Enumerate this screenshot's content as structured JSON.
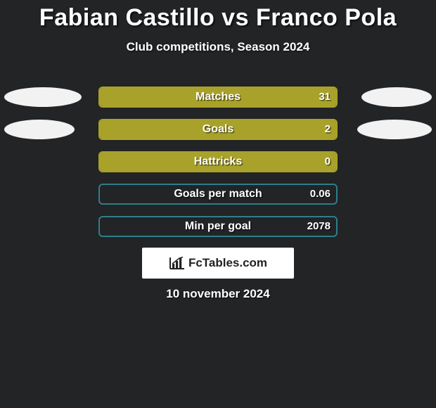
{
  "title": "Fabian Castillo vs Franco Pola",
  "subtitle": "Club competitions, Season 2024",
  "date": "10 november 2024",
  "colors": {
    "background": "#222426",
    "bar_fill": "#a9a22a",
    "bar_border_olive": "#a9a22a",
    "bar_border_teal": "#2f7e8a",
    "oval": "#f2f2f2",
    "text": "#ffffff",
    "logo_bg": "#ffffff",
    "logo_text": "#222222"
  },
  "stats": [
    {
      "label": "Matches",
      "value_right": "31",
      "fill_pct": 100,
      "border": "#a9a22a",
      "show_ovals": true,
      "oval_left_w": 110,
      "oval_right_w": 100
    },
    {
      "label": "Goals",
      "value_right": "2",
      "fill_pct": 100,
      "border": "#a9a22a",
      "show_ovals": true,
      "oval_left_w": 100,
      "oval_right_w": 106
    },
    {
      "label": "Hattricks",
      "value_right": "0",
      "fill_pct": 100,
      "border": "#a9a22a",
      "show_ovals": false
    },
    {
      "label": "Goals per match",
      "value_right": "0.06",
      "fill_pct": 0,
      "border": "#2f7e8a",
      "show_ovals": false
    },
    {
      "label": "Min per goal",
      "value_right": "2078",
      "fill_pct": 0,
      "border": "#2f7e8a",
      "show_ovals": false
    }
  ],
  "logo": {
    "name": "FcTables",
    "suffix": ".com"
  }
}
